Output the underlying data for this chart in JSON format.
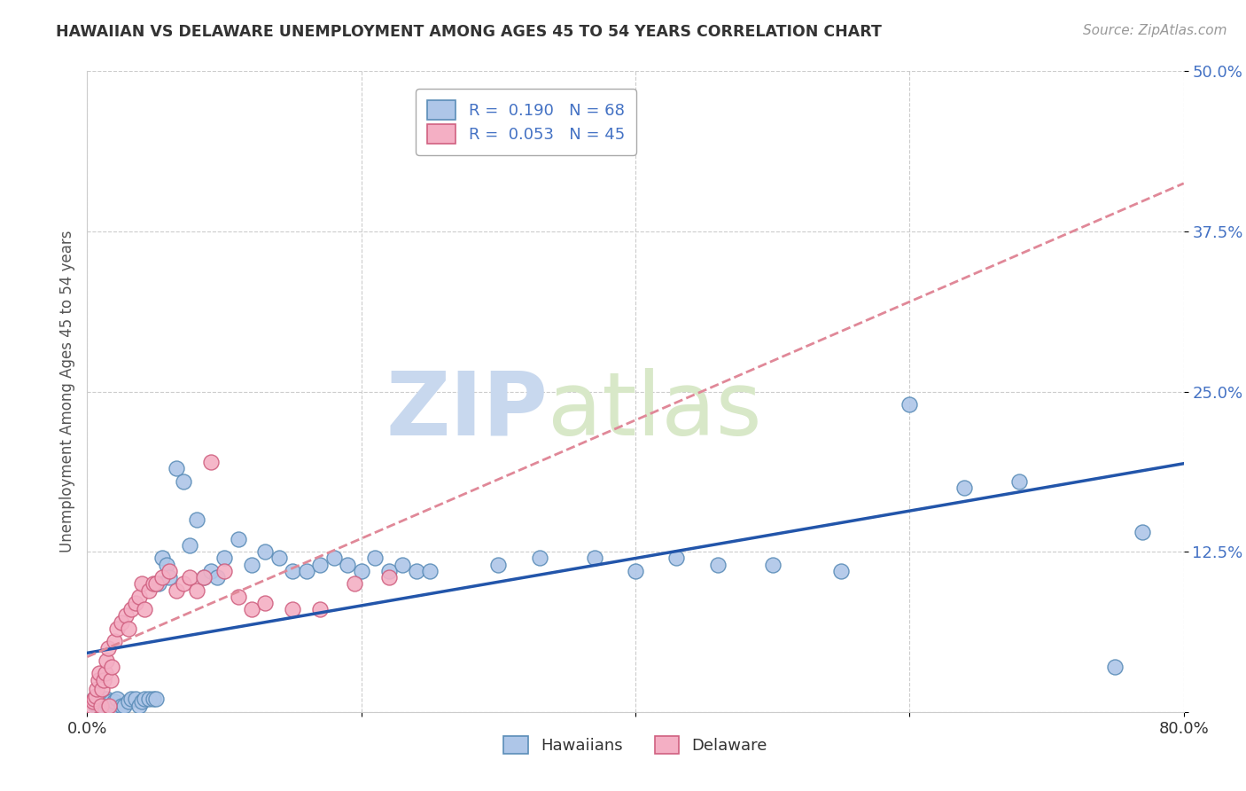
{
  "title": "HAWAIIAN VS DELAWARE UNEMPLOYMENT AMONG AGES 45 TO 54 YEARS CORRELATION CHART",
  "source": "Source: ZipAtlas.com",
  "ylabel": "Unemployment Among Ages 45 to 54 years",
  "xlim": [
    0.0,
    0.8
  ],
  "ylim": [
    0.0,
    0.5
  ],
  "xticks": [
    0.0,
    0.2,
    0.4,
    0.6,
    0.8
  ],
  "xticklabels": [
    "0.0%",
    "",
    "",
    "",
    "80.0%"
  ],
  "yticks": [
    0.0,
    0.125,
    0.25,
    0.375,
    0.5
  ],
  "yticklabels": [
    "",
    "12.5%",
    "25.0%",
    "37.5%",
    "50.0%"
  ],
  "grid_color": "#cccccc",
  "background_color": "#ffffff",
  "watermark_zip": "ZIP",
  "watermark_atlas": "atlas",
  "hawaiians_color": "#aec6e8",
  "delaware_color": "#f4afc4",
  "hawaiians_edge": "#5b8db8",
  "delaware_edge": "#d06080",
  "hawaiians_line_color": "#2255aa",
  "delaware_line_color": "#e08898",
  "legend_label1": "R =  0.190   N = 68",
  "legend_label2": "R =  0.053   N = 45",
  "hawaiians_x": [
    0.005,
    0.006,
    0.007,
    0.008,
    0.009,
    0.01,
    0.011,
    0.012,
    0.013,
    0.014,
    0.015,
    0.016,
    0.017,
    0.018,
    0.019,
    0.02,
    0.022,
    0.025,
    0.027,
    0.03,
    0.032,
    0.035,
    0.038,
    0.04,
    0.042,
    0.045,
    0.048,
    0.05,
    0.052,
    0.055,
    0.058,
    0.06,
    0.065,
    0.07,
    0.075,
    0.08,
    0.085,
    0.09,
    0.095,
    0.1,
    0.11,
    0.12,
    0.13,
    0.14,
    0.15,
    0.16,
    0.17,
    0.18,
    0.19,
    0.2,
    0.21,
    0.22,
    0.23,
    0.24,
    0.25,
    0.3,
    0.33,
    0.37,
    0.4,
    0.43,
    0.46,
    0.5,
    0.55,
    0.6,
    0.64,
    0.68,
    0.75,
    0.77
  ],
  "hawaiians_y": [
    0.01,
    0.005,
    0.008,
    0.003,
    0.005,
    0.005,
    0.003,
    0.005,
    0.008,
    0.01,
    0.003,
    0.005,
    0.008,
    0.003,
    0.005,
    0.008,
    0.01,
    0.005,
    0.005,
    0.008,
    0.01,
    0.01,
    0.005,
    0.008,
    0.01,
    0.01,
    0.01,
    0.01,
    0.1,
    0.12,
    0.115,
    0.105,
    0.19,
    0.18,
    0.13,
    0.15,
    0.105,
    0.11,
    0.105,
    0.12,
    0.135,
    0.115,
    0.125,
    0.12,
    0.11,
    0.11,
    0.115,
    0.12,
    0.115,
    0.11,
    0.12,
    0.11,
    0.115,
    0.11,
    0.11,
    0.115,
    0.12,
    0.12,
    0.11,
    0.12,
    0.115,
    0.115,
    0.11,
    0.24,
    0.175,
    0.18,
    0.035,
    0.14
  ],
  "delaware_x": [
    0.003,
    0.004,
    0.005,
    0.006,
    0.007,
    0.008,
    0.009,
    0.01,
    0.011,
    0.012,
    0.013,
    0.014,
    0.015,
    0.016,
    0.017,
    0.018,
    0.02,
    0.022,
    0.025,
    0.028,
    0.03,
    0.032,
    0.035,
    0.038,
    0.04,
    0.042,
    0.045,
    0.048,
    0.05,
    0.055,
    0.06,
    0.065,
    0.07,
    0.075,
    0.08,
    0.085,
    0.09,
    0.1,
    0.11,
    0.12,
    0.13,
    0.15,
    0.17,
    0.195,
    0.22
  ],
  "delaware_y": [
    0.005,
    0.008,
    0.01,
    0.012,
    0.018,
    0.025,
    0.03,
    0.005,
    0.018,
    0.025,
    0.03,
    0.04,
    0.05,
    0.005,
    0.025,
    0.035,
    0.055,
    0.065,
    0.07,
    0.075,
    0.065,
    0.08,
    0.085,
    0.09,
    0.1,
    0.08,
    0.095,
    0.1,
    0.1,
    0.105,
    0.11,
    0.095,
    0.1,
    0.105,
    0.095,
    0.105,
    0.195,
    0.11,
    0.09,
    0.08,
    0.085,
    0.08,
    0.08,
    0.1,
    0.105
  ]
}
